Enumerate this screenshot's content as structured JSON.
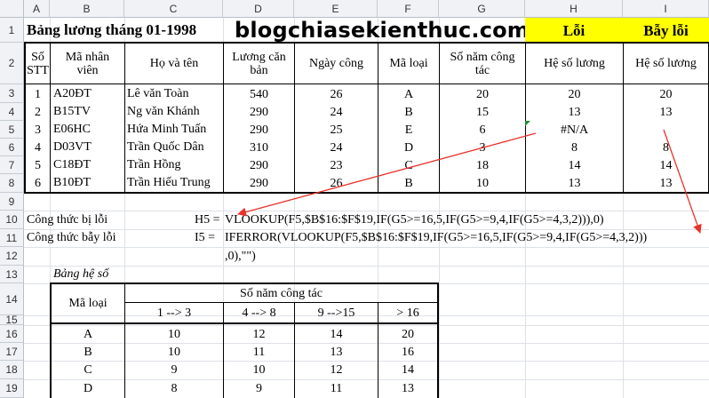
{
  "columns": [
    "A",
    "B",
    "C",
    "D",
    "E",
    "F",
    "G",
    "H",
    "I"
  ],
  "rows": [
    "1",
    "2",
    "3",
    "4",
    "5",
    "6",
    "7",
    "8",
    "9",
    "10",
    "11",
    "12",
    "13",
    "14",
    "15",
    "16",
    "17",
    "18",
    "19"
  ],
  "title": "Bảng lương tháng 01-1998",
  "watermark": "blogchiasekienthuc.com",
  "label_error": "Lỗi",
  "label_trap": "Bẫy lỗi",
  "headers": {
    "stt": "Số STT",
    "ma_nv": "Mã nhân viên",
    "ho_ten": "Họ và tên",
    "luong": "Lương căn bản",
    "ngay_cong": "Ngày công",
    "ma_loai": "Mã loại",
    "so_nam": "Số năm công tác",
    "he_so_h": "Hệ số lương",
    "he_so_i": "Hệ số lương"
  },
  "employees": [
    {
      "stt": "1",
      "ma": "A20ĐT",
      "ten": "Lê văn Toàn",
      "luong": "540",
      "ngay": "26",
      "loai": "A",
      "nam": "20",
      "h": "20",
      "i": "20"
    },
    {
      "stt": "2",
      "ma": "B15TV",
      "ten": "Ng văn Khánh",
      "luong": "290",
      "ngay": "24",
      "loai": "B",
      "nam": "15",
      "h": "13",
      "i": "13"
    },
    {
      "stt": "3",
      "ma": "E06HC",
      "ten": "Hứa Minh Tuấn",
      "luong": "290",
      "ngay": "25",
      "loai": "E",
      "nam": "6",
      "h": "#N/A",
      "i": ""
    },
    {
      "stt": "4",
      "ma": "D03VT",
      "ten": "Trần Quốc Dân",
      "luong": "310",
      "ngay": "24",
      "loai": "D",
      "nam": "3",
      "h": "8",
      "i": "8"
    },
    {
      "stt": "5",
      "ma": "C18ĐT",
      "ten": "Trần Hồng",
      "luong": "290",
      "ngay": "23",
      "loai": "C",
      "nam": "18",
      "h": "14",
      "i": "14"
    },
    {
      "stt": "6",
      "ma": "B10ĐT",
      "ten": "Trần Hiếu Trung",
      "luong": "290",
      "ngay": "26",
      "loai": "B",
      "nam": "10",
      "h": "13",
      "i": "13"
    }
  ],
  "formula_error": {
    "label": "Công thức bị lỗi",
    "ref": "H5 =",
    "text": "VLOOKUP(F5,$B$16:$F$19,IF(G5>=16,5,IF(G5>=9,4,IF(G5>=4,3,2))),0)"
  },
  "formula_trap": {
    "label": "Công thức bẫy lỗi",
    "ref": "I5 =",
    "text": "IFERROR(VLOOKUP(F5,$B$16:$F$19,IF(G5>=16,5,IF(G5>=9,4,IF(G5>=4,3,2)))",
    "text2": ",0),\"\")"
  },
  "coef_table": {
    "caption": "Bảng hệ số",
    "ma_loai": "Mã loại",
    "group": "Số năm công tác",
    "ranges": [
      "1 --> 3",
      "4 --> 8",
      "9 -->15",
      "> 16"
    ],
    "rows": [
      {
        "k": "A",
        "v": [
          "10",
          "12",
          "14",
          "20"
        ]
      },
      {
        "k": "B",
        "v": [
          "10",
          "11",
          "13",
          "16"
        ]
      },
      {
        "k": "C",
        "v": [
          "9",
          "10",
          "12",
          "14"
        ]
      },
      {
        "k": "D",
        "v": [
          "8",
          "9",
          "11",
          "13"
        ]
      }
    ]
  },
  "colors": {
    "arrow": "#e8322a",
    "highlight": "#ffff00",
    "cell_indicator": "#1e8c2f"
  }
}
